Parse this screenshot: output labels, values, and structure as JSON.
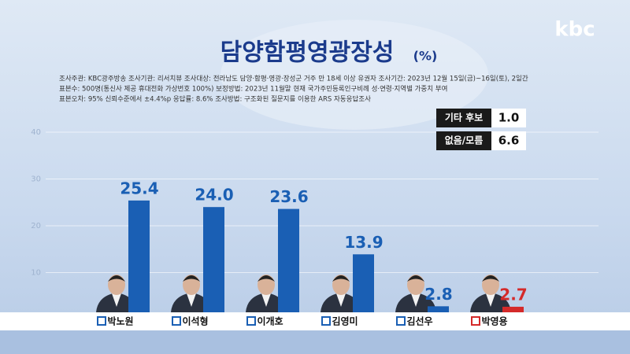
{
  "chart_data": {
    "type": "bar",
    "title": "담양함평영광장성",
    "unit": "(%)",
    "brand": "kbc",
    "notes": [
      "조사주관: KBC광주방송   조사기관: 리서치뷰   조사대상: 전라남도 담양·함평·영광·장성군 거주 만 18세 이상 유권자   조사기간: 2023년 12월 15일(금)~16일(토), 2일간",
      "표본수: 500명(통신사 제공 휴대전화 가상번호 100%)   보정방법: 2023년 11월말 현재 국가주민등록인구비례 성·연령·지역별 가중치 부여",
      "표본오차: 95% 신뢰수준에서 ±4.4%p   응답률: 8.6%   조사방법: 구조화된 질문지를 이용한 ARS 자동응답조사"
    ],
    "categories": [
      "박노원",
      "이석형",
      "이개호",
      "김영미",
      "김선우",
      "박영용"
    ],
    "values": [
      25.4,
      24,
      23.6,
      13.9,
      2.8,
      2.7
    ],
    "value_labels": [
      "25.4",
      "24.0",
      "23.6",
      "13.9",
      "2.8",
      "2.7"
    ],
    "colors": [
      "#1a5fb4",
      "#1a5fb4",
      "#1a5fb4",
      "#1a5fb4",
      "#1a5fb4",
      "#d42a2a"
    ],
    "ylim": [
      0,
      40
    ],
    "yticks": [
      10,
      20,
      30,
      40
    ],
    "grid": true,
    "others": [
      {
        "label": "기타 후보",
        "value": 1,
        "value_label": "1.0"
      },
      {
        "label": "없음/모름",
        "value": 6.6,
        "value_label": "6.6"
      }
    ]
  }
}
